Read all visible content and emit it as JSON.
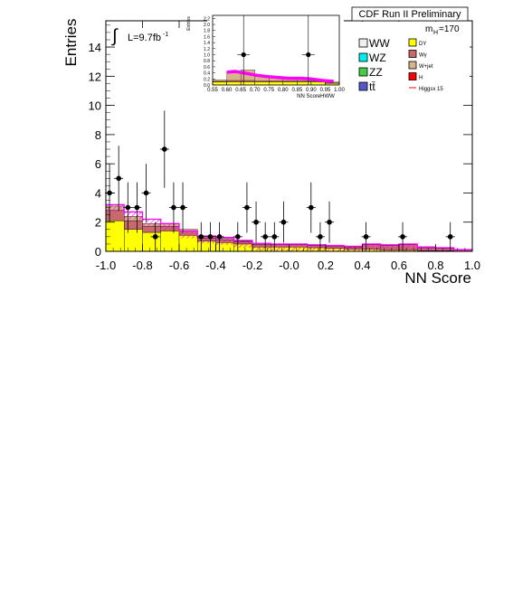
{
  "chart_data": {
    "type": "bar",
    "title": "CDF Run II Preliminary",
    "xlabel": "NN Score",
    "ylabel": "Entries",
    "xlim": [
      -1.0,
      1.0
    ],
    "ylim": [
      0,
      15.8
    ],
    "xticks": [
      "-1.0",
      "-0.8",
      "-0.6",
      "-0.4",
      "-0.2",
      "-0.0",
      "0.2",
      "0.4",
      "0.6",
      "0.8",
      "1.0"
    ],
    "yticks": [
      "0",
      "2",
      "4",
      "6",
      "8",
      "10",
      "12",
      "14"
    ],
    "luminosity_label": "L=9.7fb",
    "luminosity_sup": "-1",
    "mass_label": "m",
    "mass_sub": "H",
    "mass_value": "=170",
    "bin_edges": [
      -1.0,
      -0.9,
      -0.8,
      -0.7,
      -0.6,
      -0.5,
      -0.4,
      -0.3,
      -0.2,
      -0.1,
      0.0,
      0.1,
      0.2,
      0.3,
      0.4,
      0.5,
      0.6,
      0.7,
      0.8,
      0.9,
      1.0
    ],
    "stacked_series": [
      {
        "name": "DY",
        "color": "#ffff00",
        "values": [
          2.1,
          1.5,
          1.3,
          1.4,
          1.1,
          0.7,
          0.6,
          0.5,
          0.3,
          0.3,
          0.3,
          0.25,
          0.2,
          0.15,
          0.15,
          0.1,
          0.1,
          0.05,
          0.05,
          0.02
        ]
      },
      {
        "name": "Wγ",
        "color": "#c8696e",
        "values": [
          0.7,
          0.6,
          0.4,
          0.3,
          0.3,
          0.2,
          0.2,
          0.15,
          0.15,
          0.15,
          0.15,
          0.15,
          0.15,
          0.15,
          0.3,
          0.3,
          0.35,
          0.2,
          0.15,
          0.1
        ]
      },
      {
        "name": "W+jet",
        "color": "#d9b48a",
        "values": [
          0.3,
          0.3,
          0.2,
          0.2,
          0.1,
          0.1,
          0.1,
          0.05,
          0.05,
          0.05,
          0.05,
          0.05,
          0.05,
          0.05,
          0.05,
          0.05,
          0.05,
          0.05,
          0.05,
          0.02
        ]
      }
    ],
    "higgs": {
      "name": "Higgsx 15",
      "color": "#ff00ff",
      "values": [
        3.2,
        2.7,
        2.2,
        1.9,
        1.4,
        1.05,
        0.95,
        0.75,
        0.55,
        0.5,
        0.5,
        0.45,
        0.4,
        0.35,
        0.5,
        0.45,
        0.5,
        0.3,
        0.25,
        0.12
      ]
    },
    "data_points": {
      "x": [
        -0.98,
        -0.93,
        -0.88,
        -0.83,
        -0.78,
        -0.73,
        -0.68,
        -0.63,
        -0.58,
        -0.48,
        -0.43,
        -0.38,
        -0.28,
        -0.23,
        -0.18,
        -0.13,
        -0.08,
        -0.03,
        0.12,
        0.17,
        0.22,
        0.42,
        0.62,
        0.88
      ],
      "y": [
        4,
        5,
        3,
        3,
        4,
        1,
        7,
        3,
        3,
        1,
        1,
        1,
        1,
        3,
        2,
        1,
        1,
        2,
        3,
        1,
        2,
        1,
        1,
        1
      ]
    }
  },
  "inset": {
    "xlabel": "NN ScoreHWW",
    "ylabel": "Entries",
    "xlim": [
      0.55,
      1.0
    ],
    "ylim": [
      0,
      2.3
    ],
    "xticks": [
      "0.55",
      "0.60",
      "0.65",
      "0.70",
      "0.75",
      "0.80",
      "0.85",
      "0.90",
      "0.95",
      "1.00"
    ],
    "yticks": [
      "0.0",
      "0.2",
      "0.4",
      "0.6",
      "0.8",
      "1.0",
      "1.2",
      "1.4",
      "1.6",
      "1.8",
      "2.0",
      "2.2"
    ],
    "bin_edges": [
      0.55,
      0.6,
      0.65,
      0.7,
      0.75,
      0.8,
      0.85,
      0.9,
      0.95,
      1.0
    ],
    "stacked_series": [
      {
        "name": "DY",
        "color": "#ffff00",
        "values": [
          0.1,
          0.1,
          0.1,
          0.1,
          0.1,
          0.1,
          0.1,
          0.1,
          0.05
        ]
      },
      {
        "name": "Wγ",
        "color": "#c8696e",
        "values": [
          0.02,
          0.05,
          0.05,
          0.03,
          0.03,
          0.03,
          0.03,
          0.03,
          0.02
        ]
      },
      {
        "name": "W+jet",
        "color": "#d9b48a",
        "values": [
          0.05,
          0.25,
          0.35,
          0.15,
          0.1,
          0.12,
          0.1,
          0.05,
          0.03
        ]
      }
    ],
    "higgs_line": [
      {
        "x": 0.6,
        "y": 0.42
      },
      {
        "x": 0.63,
        "y": 0.45
      },
      {
        "x": 0.66,
        "y": 0.4
      },
      {
        "x": 0.7,
        "y": 0.33
      },
      {
        "x": 0.74,
        "y": 0.28
      },
      {
        "x": 0.78,
        "y": 0.25
      },
      {
        "x": 0.82,
        "y": 0.22
      },
      {
        "x": 0.86,
        "y": 0.22
      },
      {
        "x": 0.9,
        "y": 0.2
      },
      {
        "x": 0.94,
        "y": 0.15
      },
      {
        "x": 0.98,
        "y": 0.12
      }
    ],
    "data_points": {
      "x": [
        0.66,
        0.89
      ],
      "y": [
        1,
        1
      ]
    }
  },
  "legend": {
    "left": [
      {
        "label": "WW",
        "color": "#f0f0f0"
      },
      {
        "label": "WZ",
        "color": "#00eeee"
      },
      {
        "label": "ZZ",
        "color": "#44cc44"
      },
      {
        "label": "tt̄",
        "color": "#5555cc"
      }
    ],
    "right": [
      {
        "label": "DY",
        "color": "#ffff00",
        "kind": "box"
      },
      {
        "label": "Wγ",
        "color": "#c8696e",
        "kind": "box"
      },
      {
        "label": "W+jet",
        "color": "#d9b48a",
        "kind": "box"
      },
      {
        "label": "H",
        "color": "#ff0000",
        "kind": "box"
      },
      {
        "label": "Higgsx 15",
        "color": "#ff0000",
        "kind": "line"
      }
    ]
  }
}
